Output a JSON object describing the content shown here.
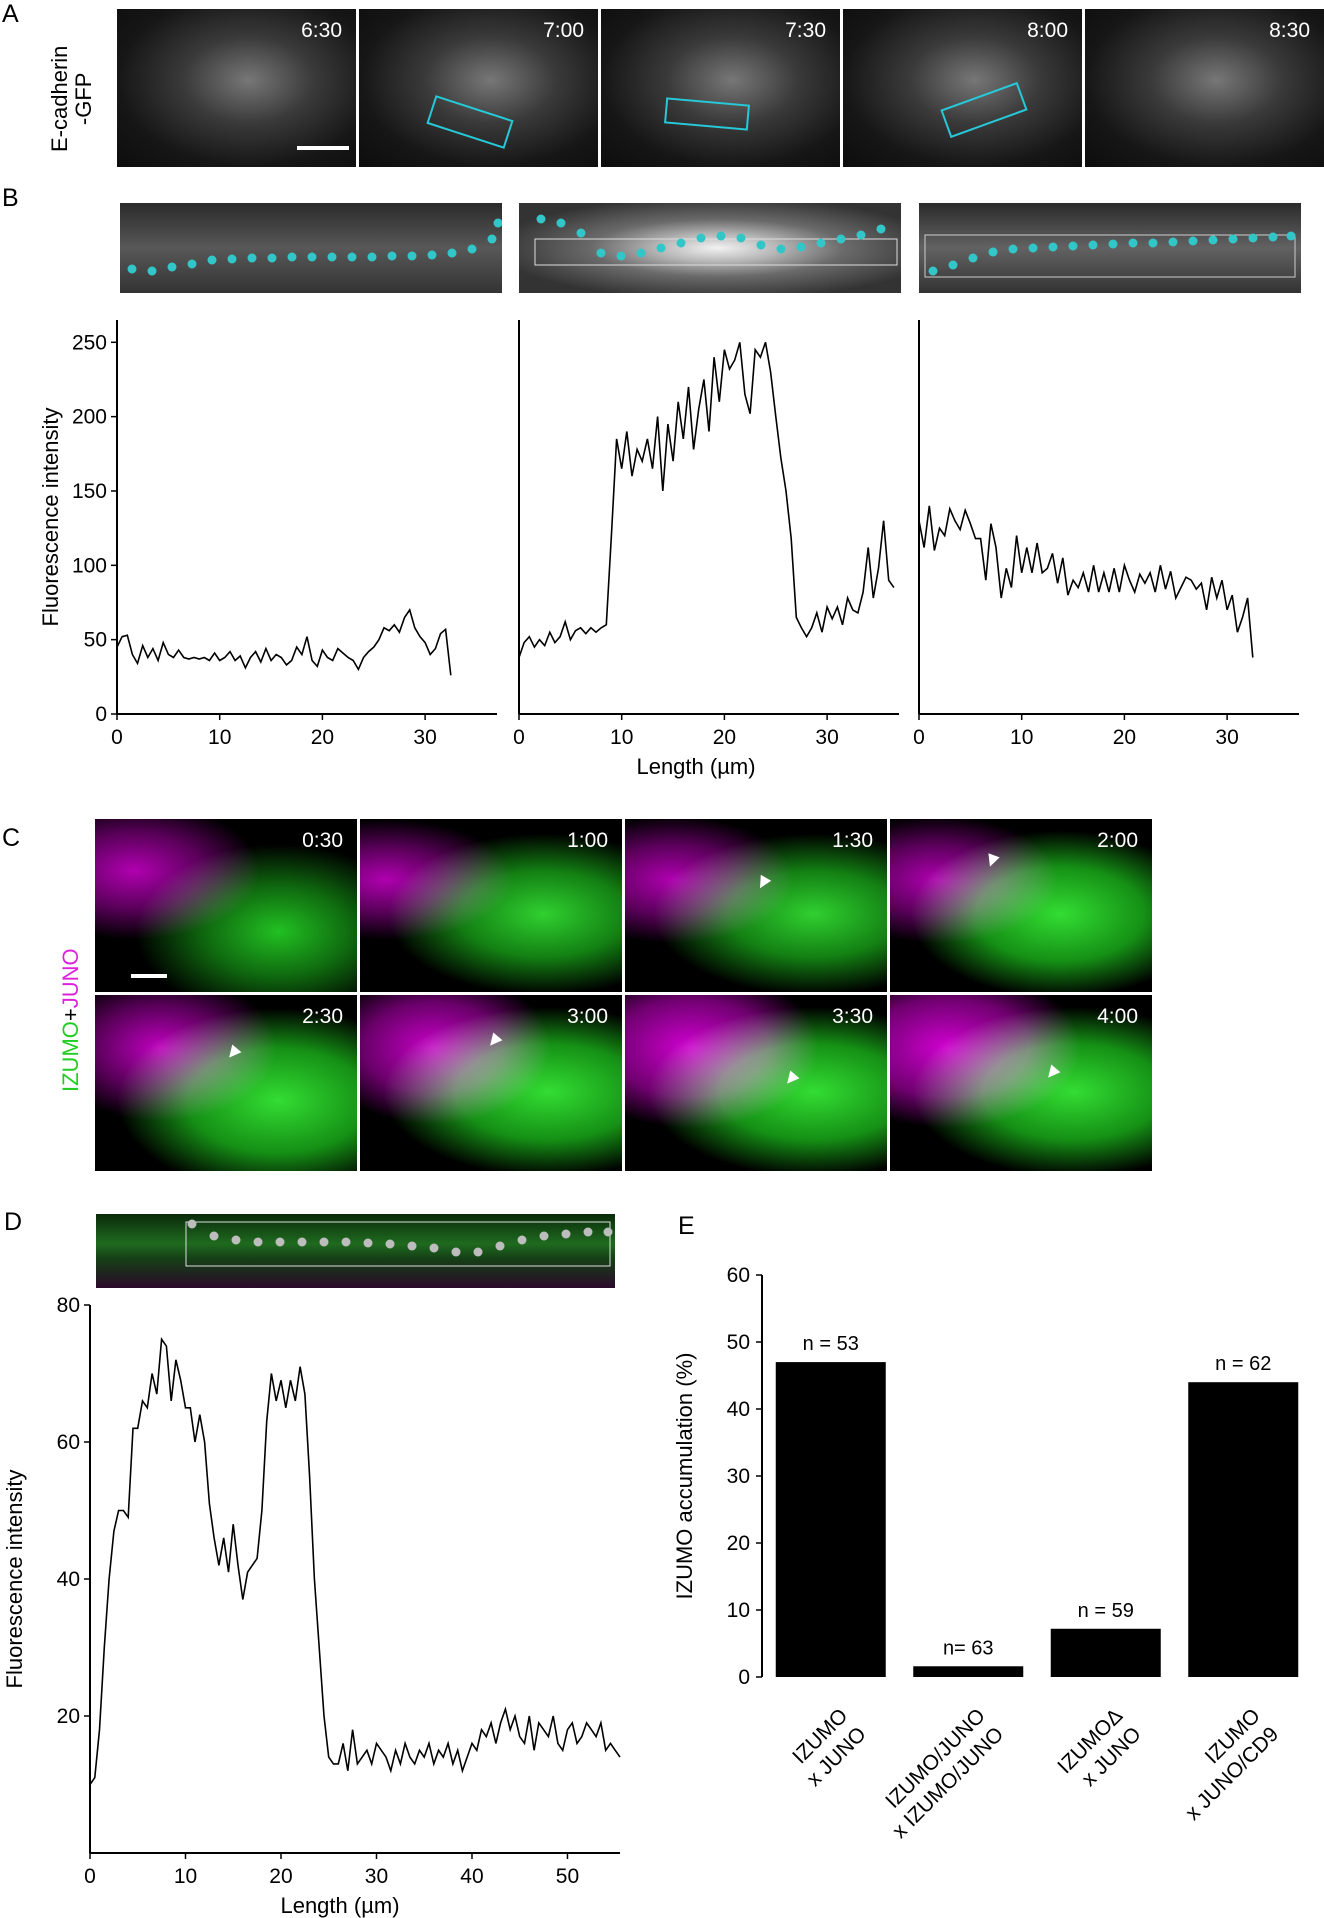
{
  "panels": {
    "A": "A",
    "B": "B",
    "C": "C",
    "D": "D",
    "E": "E"
  },
  "panel_a": {
    "ylabel_line1": "E-cadherin",
    "ylabel_line2": "-GFP",
    "times": [
      "6:30",
      "7:00",
      "7:30",
      "8:00",
      "8:30"
    ]
  },
  "panel_c": {
    "label_izumo": "IZUMO",
    "label_plus": "+",
    "label_juno": "JUNO",
    "times": [
      "0:30",
      "1:00",
      "1:30",
      "2:00",
      "2:30",
      "3:00",
      "3:30",
      "4:00"
    ],
    "colors": {
      "izumo": "#22cc22",
      "juno": "#dd22dd"
    }
  },
  "chart_data": [
    {
      "type": "line",
      "id": "B1",
      "ylabel": "Fluorescence intensity",
      "xlim": [
        0,
        37
      ],
      "ylim": [
        0,
        265
      ],
      "xticks": [
        0,
        10,
        20,
        30
      ],
      "yticks": [
        0,
        50,
        100,
        150,
        200,
        250
      ],
      "x": [
        0,
        0.5,
        1,
        1.5,
        2,
        2.5,
        3,
        3.5,
        4,
        4.5,
        5,
        5.5,
        6,
        6.5,
        7,
        7.5,
        8,
        8.5,
        9,
        9.5,
        10,
        10.5,
        11,
        11.5,
        12,
        12.5,
        13,
        13.5,
        14,
        14.5,
        15,
        15.5,
        16,
        16.5,
        17,
        17.5,
        18,
        18.5,
        19,
        19.5,
        20,
        20.5,
        21,
        21.5,
        22,
        22.5,
        23,
        23.5,
        24,
        24.5,
        25,
        25.5,
        26,
        26.5,
        27,
        27.5,
        28,
        28.5,
        29,
        29.5,
        30,
        30.5,
        31,
        31.5,
        32,
        32.5
      ],
      "y": [
        45,
        52,
        53,
        40,
        34,
        46,
        38,
        44,
        36,
        48,
        40,
        38,
        43,
        38,
        37,
        38,
        37,
        38,
        36,
        41,
        36,
        38,
        42,
        36,
        39,
        31,
        38,
        42,
        35,
        44,
        36,
        40,
        38,
        33,
        36,
        45,
        40,
        52,
        36,
        32,
        43,
        38,
        36,
        44,
        41,
        38,
        36,
        30,
        38,
        42,
        45,
        50,
        58,
        56,
        60,
        55,
        65,
        70,
        58,
        52,
        48,
        40,
        44,
        54,
        57,
        26
      ]
    },
    {
      "type": "line",
      "id": "B2",
      "xlabel": "Length (µm)",
      "xlim": [
        0,
        37
      ],
      "ylim": [
        0,
        265
      ],
      "xticks": [
        0,
        10,
        20,
        30
      ],
      "x": [
        0,
        0.5,
        1,
        1.5,
        2,
        2.5,
        3,
        3.5,
        4,
        4.5,
        5,
        5.5,
        6,
        6.5,
        7,
        7.5,
        8,
        8.5,
        9,
        9.5,
        10,
        10.5,
        11,
        11.5,
        12,
        12.5,
        13,
        13.5,
        14,
        14.5,
        15,
        15.5,
        16,
        16.5,
        17,
        17.5,
        18,
        18.5,
        19,
        19.5,
        20,
        20.5,
        21,
        21.5,
        22,
        22.5,
        23,
        23.5,
        24,
        24.5,
        25,
        25.5,
        26,
        26.5,
        27,
        27.5,
        28,
        28.5,
        29,
        29.5,
        30,
        30.5,
        31,
        31.5,
        32,
        32.5,
        33,
        33.5,
        34,
        34.5,
        35,
        35.5,
        36,
        36.5
      ],
      "y": [
        38,
        48,
        52,
        45,
        50,
        46,
        55,
        48,
        52,
        62,
        50,
        56,
        58,
        54,
        58,
        55,
        58,
        60,
        120,
        185,
        165,
        190,
        160,
        178,
        170,
        185,
        165,
        200,
        150,
        195,
        170,
        210,
        185,
        220,
        178,
        205,
        225,
        190,
        240,
        210,
        245,
        232,
        238,
        250,
        215,
        202,
        245,
        240,
        250,
        230,
        200,
        172,
        150,
        118,
        65,
        58,
        52,
        58,
        68,
        55,
        72,
        64,
        72,
        60,
        78,
        70,
        68,
        82,
        112,
        78,
        98,
        130,
        90,
        85
      ]
    },
    {
      "type": "line",
      "id": "B3",
      "xlim": [
        0,
        37
      ],
      "ylim": [
        0,
        265
      ],
      "xticks": [
        0,
        10,
        20,
        30
      ],
      "x": [
        0,
        0.5,
        1,
        1.5,
        2,
        2.5,
        3,
        3.5,
        4,
        4.5,
        5,
        5.5,
        6,
        6.5,
        7,
        7.5,
        8,
        8.5,
        9,
        9.5,
        10,
        10.5,
        11,
        11.5,
        12,
        12.5,
        13,
        13.5,
        14,
        14.5,
        15,
        15.5,
        16,
        16.5,
        17,
        17.5,
        18,
        18.5,
        19,
        19.5,
        20,
        20.5,
        21,
        21.5,
        22,
        22.5,
        23,
        23.5,
        24,
        24.5,
        25,
        25.5,
        26,
        26.5,
        27,
        27.5,
        28,
        28.5,
        29,
        29.5,
        30,
        30.5,
        31,
        31.5,
        32,
        32.5
      ],
      "y": [
        130,
        112,
        140,
        110,
        125,
        120,
        138,
        130,
        124,
        137,
        128,
        118,
        118,
        90,
        128,
        112,
        78,
        98,
        85,
        120,
        95,
        112,
        95,
        115,
        95,
        98,
        108,
        88,
        105,
        80,
        90,
        85,
        95,
        82,
        100,
        82,
        95,
        82,
        98,
        82,
        100,
        90,
        82,
        94,
        88,
        95,
        82,
        100,
        84,
        96,
        78,
        85,
        92,
        90,
        84,
        88,
        70,
        92,
        78,
        90,
        70,
        80,
        55,
        65,
        78,
        38
      ]
    },
    {
      "type": "line",
      "id": "D",
      "xlabel": "Length (µm)",
      "ylabel": "Fluorescence intensity",
      "xlim": [
        0,
        55.5
      ],
      "ylim": [
        0,
        80
      ],
      "xticks": [
        0,
        10,
        20,
        30,
        40,
        50
      ],
      "yticks": [
        20,
        40,
        60,
        80
      ],
      "x": [
        0,
        0.5,
        1,
        1.5,
        2,
        2.5,
        3,
        3.5,
        4,
        4.5,
        5,
        5.5,
        6,
        6.5,
        7,
        7.5,
        8,
        8.5,
        9,
        9.5,
        10,
        10.5,
        11,
        11.5,
        12,
        12.5,
        13,
        13.5,
        14,
        14.5,
        15,
        15.5,
        16,
        16.5,
        17,
        17.5,
        18,
        18.5,
        19,
        19.5,
        20,
        20.5,
        21,
        21.5,
        22,
        22.5,
        23,
        23.5,
        24,
        24.5,
        25,
        25.5,
        26,
        26.5,
        27,
        27.5,
        28,
        28.5,
        29,
        29.5,
        30,
        30.5,
        31,
        31.5,
        32,
        32.5,
        33,
        33.5,
        34,
        34.5,
        35,
        35.5,
        36,
        36.5,
        37,
        37.5,
        38,
        38.5,
        39,
        39.5,
        40,
        40.5,
        41,
        41.5,
        42,
        42.5,
        43,
        43.5,
        44,
        44.5,
        45,
        45.5,
        46,
        46.5,
        47,
        47.5,
        48,
        48.5,
        49,
        49.5,
        50,
        50.5,
        51,
        51.5,
        52,
        52.5,
        53,
        53.5,
        54,
        54.5,
        55,
        55.5
      ],
      "y": [
        10,
        11,
        18,
        30,
        40,
        47,
        50,
        50,
        49,
        62,
        62,
        66,
        65,
        70,
        67,
        75,
        74,
        66,
        72,
        69,
        65,
        65,
        60,
        64,
        60,
        51,
        46,
        42,
        46,
        41,
        48,
        42,
        37,
        41,
        42,
        43,
        50,
        63,
        70,
        66,
        69,
        65,
        69,
        66,
        71,
        67,
        55,
        40,
        30,
        20,
        14,
        13,
        13,
        16,
        12,
        18,
        13,
        14,
        15,
        13,
        16,
        15,
        14,
        12,
        15,
        13,
        16,
        14,
        13,
        15,
        14,
        16,
        13,
        15,
        14,
        16,
        13,
        15,
        12,
        14,
        16,
        15,
        18,
        17,
        19,
        16,
        19,
        21,
        18,
        20,
        17,
        16,
        20,
        15,
        19,
        18,
        17,
        20,
        16,
        15,
        18,
        19,
        16,
        17,
        19,
        18,
        17,
        19,
        15,
        16,
        15,
        14
      ]
    },
    {
      "type": "bar",
      "id": "E",
      "ylabel": "IZUMO accumulation (%)",
      "categories": [
        "IZUMO\nx JUNO",
        "IZUMO/JUNO\nx IZUMO/JUNO",
        "IZUMOΔ\nx JUNO",
        "IZUMO\nx JUNO/CD9"
      ],
      "values": [
        47,
        1.6,
        7.2,
        44
      ],
      "annotations": [
        "n = 53",
        "n= 63",
        "n = 59",
        "n = 62"
      ],
      "ylim": [
        0,
        60
      ],
      "yticks": [
        0,
        10,
        20,
        30,
        40,
        50,
        60
      ]
    }
  ]
}
